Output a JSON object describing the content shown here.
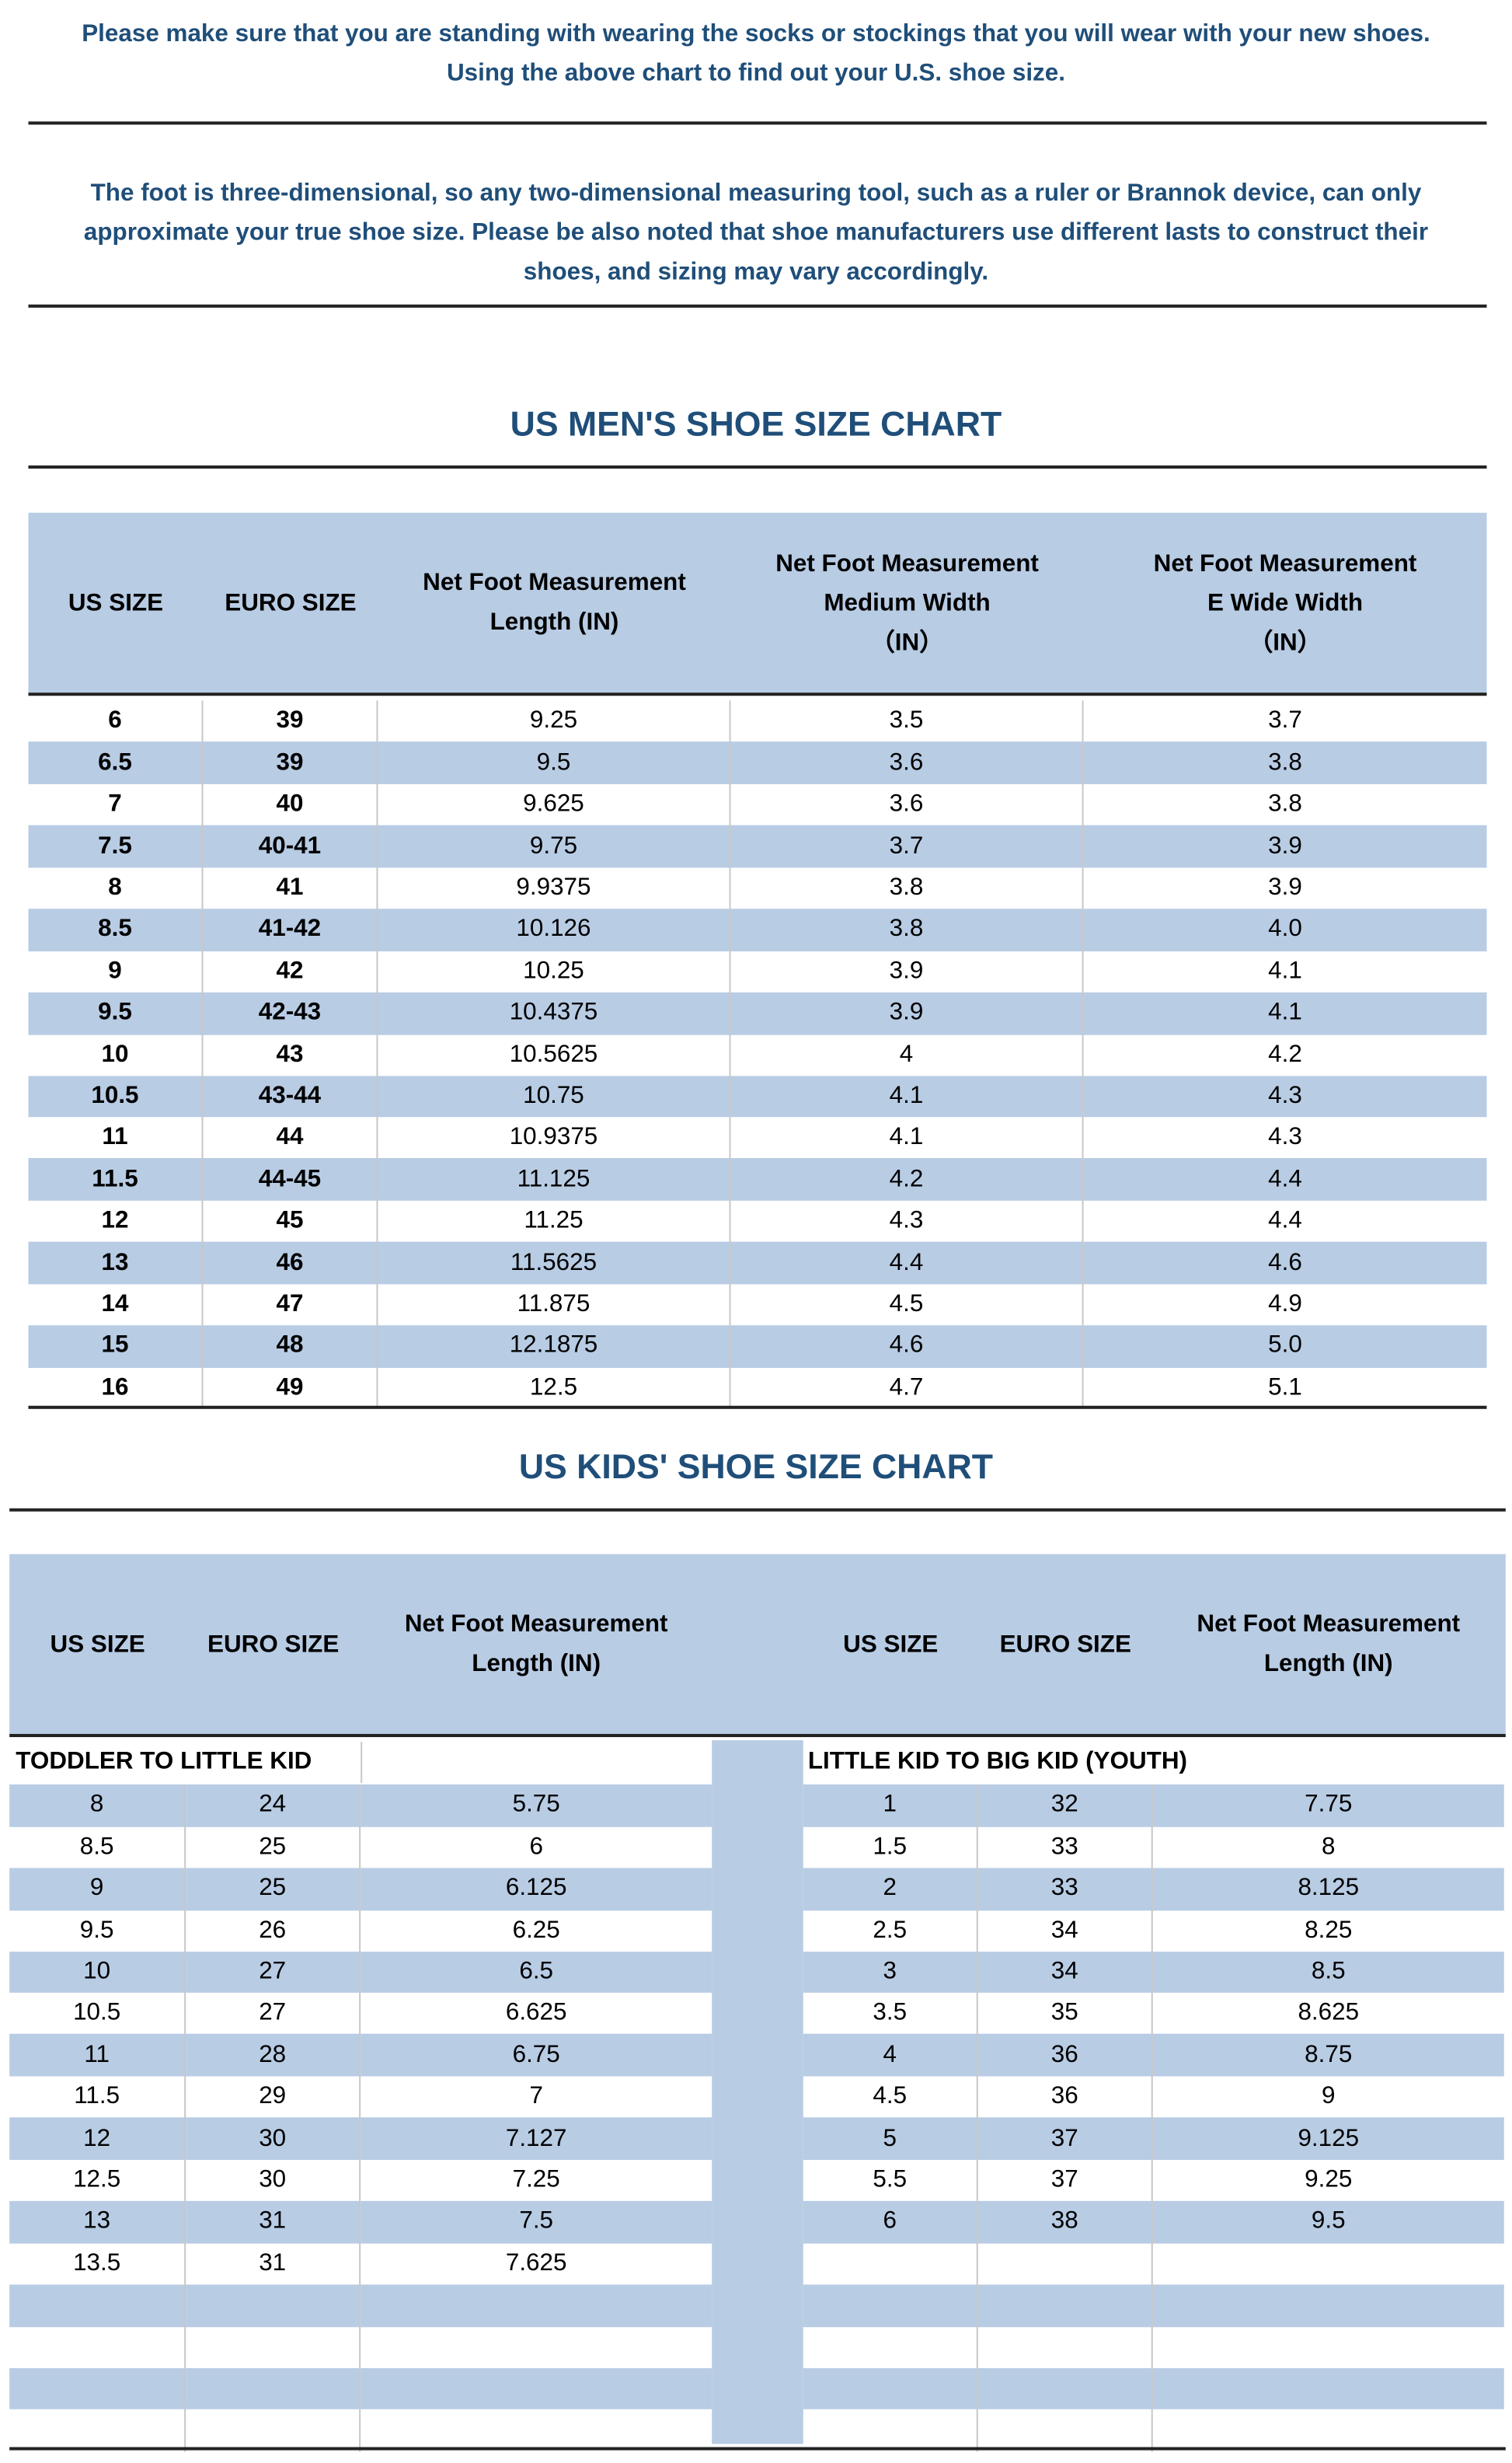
{
  "notes": [
    {
      "lines": [
        "Please make sure that you are standing with wearing the socks or stockings that you will wear with your new shoes.",
        "Using the above chart to find out your U.S. shoe size."
      ]
    },
    {
      "lines": [
        "The foot is three-dimensional, so any two-dimensional measuring tool, such as a ruler or Brannok device, can only",
        "approximate your true shoe size. Please be also noted that shoe manufacturers use different lasts to construct their",
        "shoes, and sizing may vary accordingly."
      ]
    }
  ],
  "mens_chart": {
    "title": "US MEN'S SHOE SIZE CHART",
    "headers": [
      [
        "US SIZE"
      ],
      [
        "EURO SIZE"
      ],
      [
        "Net Foot Measurement",
        "Length (IN)"
      ],
      [
        "Net Foot Measurement",
        "Medium Width",
        "（IN）"
      ],
      [
        "Net Foot Measurement",
        "E Wide Width",
        "（IN）"
      ]
    ],
    "rows": [
      [
        "6",
        "39",
        "9.25",
        "3.5",
        "3.7"
      ],
      [
        "6.5",
        "39",
        "9.5",
        "3.6",
        "3.8"
      ],
      [
        "7",
        "40",
        "9.625",
        "3.6",
        "3.8"
      ],
      [
        "7.5",
        "40-41",
        "9.75",
        "3.7",
        "3.9"
      ],
      [
        "8",
        "41",
        "9.9375",
        "3.8",
        "3.9"
      ],
      [
        "8.5",
        "41-42",
        "10.126",
        "3.8",
        "4.0"
      ],
      [
        "9",
        "42",
        "10.25",
        "3.9",
        "4.1"
      ],
      [
        "9.5",
        "42-43",
        "10.4375",
        "3.9",
        "4.1"
      ],
      [
        "10",
        "43",
        "10.5625",
        "4",
        "4.2"
      ],
      [
        "10.5",
        "43-44",
        "10.75",
        "4.1",
        "4.3"
      ],
      [
        "11",
        "44",
        "10.9375",
        "4.1",
        "4.3"
      ],
      [
        "11.5",
        "44-45",
        "11.125",
        "4.2",
        "4.4"
      ],
      [
        "12",
        "45",
        "11.25",
        "4.3",
        "4.4"
      ],
      [
        "13",
        "46",
        "11.5625",
        "4.4",
        "4.6"
      ],
      [
        "14",
        "47",
        "11.875",
        "4.5",
        "4.9"
      ],
      [
        "15",
        "48",
        "12.1875",
        "4.6",
        "5.0"
      ],
      [
        "16",
        "49",
        "12.5",
        "4.7",
        "5.1"
      ]
    ]
  },
  "kids_chart": {
    "title": "US KIDS' SHOE SIZE CHART",
    "left": {
      "headers": [
        [
          "US SIZE"
        ],
        [
          "EURO SIZE"
        ],
        [
          "Net Foot Measurement",
          "Length (IN)"
        ]
      ],
      "section": "TODDLER TO LITTLE KID",
      "rows": [
        [
          "8",
          "24",
          "5.75"
        ],
        [
          "8.5",
          "25",
          "6"
        ],
        [
          "9",
          "25",
          "6.125"
        ],
        [
          "9.5",
          "26",
          "6.25"
        ],
        [
          "10",
          "27",
          "6.5"
        ],
        [
          "10.5",
          "27",
          "6.625"
        ],
        [
          "11",
          "28",
          "6.75"
        ],
        [
          "11.5",
          "29",
          "7"
        ],
        [
          "12",
          "30",
          "7.127"
        ],
        [
          "12.5",
          "30",
          "7.25"
        ],
        [
          "13",
          "31",
          "7.5"
        ],
        [
          "13.5",
          "31",
          "7.625"
        ]
      ]
    },
    "right": {
      "headers": [
        [
          "US SIZE"
        ],
        [
          "EURO SIZE"
        ],
        [
          "Net Foot Measurement",
          "Length (IN)"
        ]
      ],
      "section": "LITTLE KID TO BIG KID (YOUTH)",
      "rows": [
        [
          "1",
          "32",
          "7.75"
        ],
        [
          "1.5",
          "33",
          "8"
        ],
        [
          "2",
          "33",
          "8.125"
        ],
        [
          "2.5",
          "34",
          "8.25"
        ],
        [
          "3",
          "34",
          "8.5"
        ],
        [
          "3.5",
          "35",
          "8.625"
        ],
        [
          "4",
          "36",
          "8.75"
        ],
        [
          "4.5",
          "36",
          "9"
        ],
        [
          "5",
          "37",
          "9.125"
        ],
        [
          "5.5",
          "37",
          "9.25"
        ],
        [
          "6",
          "38",
          "9.5"
        ]
      ]
    }
  }
}
